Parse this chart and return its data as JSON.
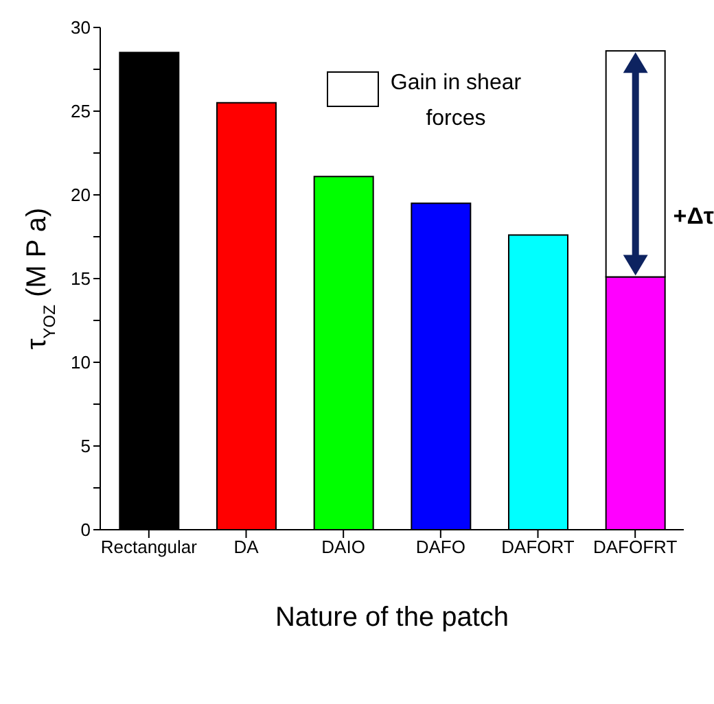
{
  "chart_data": {
    "type": "bar",
    "xlabel": "Nature of the patch",
    "ylabel": "τ$_{YOZ}$  (M P a)",
    "categories": [
      "Rectangular",
      "DA",
      "DAIO",
      "DAFO",
      "DAFORT",
      "DAFOFRT"
    ],
    "stacked": true,
    "series": [
      {
        "colors": [
          "#000000",
          "#ff0000",
          "#00ff00",
          "#0000ff",
          "#00ffff",
          "#ff00ff"
        ],
        "values": [
          28.5,
          25.5,
          21.1,
          19.5,
          17.6,
          15.1
        ]
      },
      {
        "name": "Gain in shear forces",
        "color": "#ffffff",
        "values": [
          null,
          null,
          null,
          null,
          null,
          13.5
        ]
      }
    ],
    "ylim": [
      0,
      30
    ],
    "yticks": [
      0,
      {
        "value": 2.5,
        "label": null
      },
      5,
      {
        "value": 7.5,
        "label": null
      },
      10,
      {
        "value": 12.5,
        "label": null
      },
      15,
      {
        "value": 17.5,
        "label": null
      },
      20,
      {
        "value": 22.5,
        "label": null
      },
      25,
      {
        "value": 27.5,
        "label": null
      },
      30
    ],
    "annotations": [
      "+Δτ"
    ],
    "legend": "top",
    "grid": false
  }
}
